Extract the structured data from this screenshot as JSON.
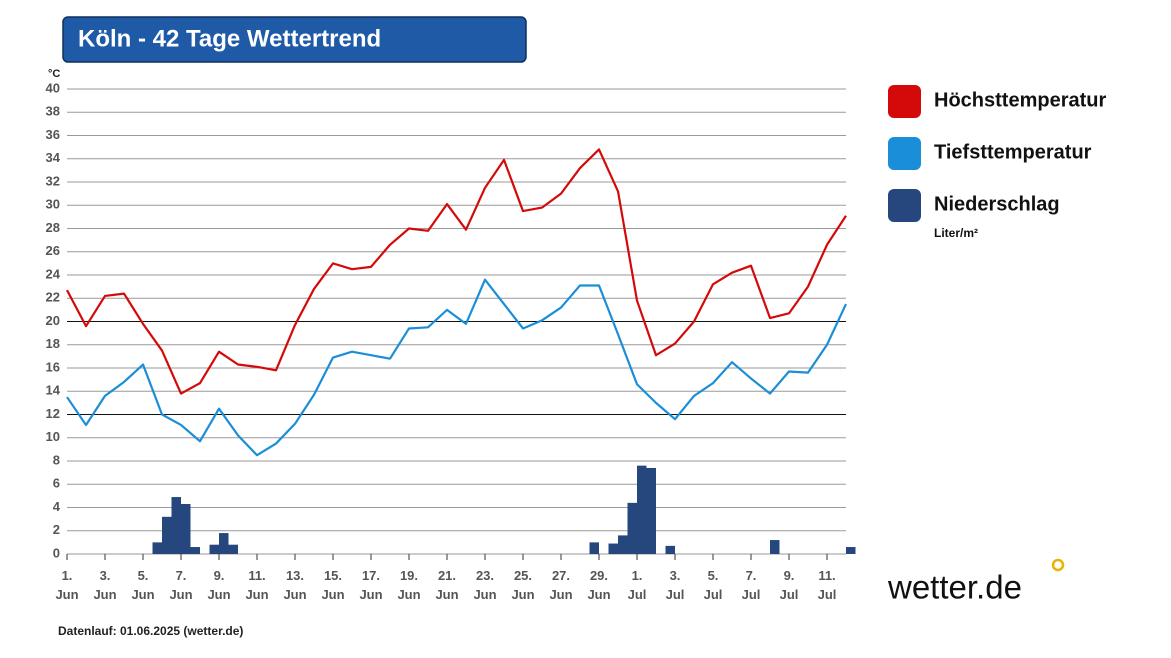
{
  "chart_data": {
    "type": "line",
    "title": "Köln - 42 Tage Wettertrend",
    "y_unit": "°C",
    "footnote": "Datenlauf: 01.06.2025 (wetter.de)",
    "brand": "wetter.de",
    "categories": [
      "1. Jun",
      null,
      "3. Jun",
      null,
      "5. Jun",
      null,
      "7. Jun",
      null,
      "9. Jun",
      null,
      "11. Jun",
      null,
      "13. Jun",
      null,
      "15. Jun",
      null,
      "17. Jun",
      null,
      "19. Jun",
      null,
      "21. Jun",
      null,
      "23. Jun",
      null,
      "25. Jun",
      null,
      "27. Jun",
      null,
      "29. Jun",
      null,
      "1. Jul",
      null,
      "3. Jul",
      null,
      "5. Jul",
      null,
      "7. Jul",
      null,
      "9. Jul",
      null,
      "11. Jul",
      null
    ],
    "ylim": [
      0,
      40
    ],
    "yticks": [
      0,
      2,
      4,
      6,
      8,
      10,
      12,
      14,
      16,
      18,
      20,
      22,
      24,
      26,
      28,
      30,
      32,
      34,
      36,
      38,
      40
    ],
    "grid": true,
    "reference_lines": [
      12,
      20
    ],
    "series": [
      {
        "name": "Höchsttemperatur",
        "type": "line",
        "color": "#d40a0a",
        "values": [
          22.7,
          19.6,
          22.2,
          22.4,
          19.8,
          17.5,
          13.8,
          14.7,
          17.4,
          16.3,
          16.1,
          15.8,
          19.7,
          22.8,
          25.0,
          24.5,
          24.7,
          26.6,
          28.0,
          27.8,
          30.1,
          27.9,
          31.5,
          33.9,
          29.5,
          29.8,
          31.0,
          33.2,
          34.8,
          31.2,
          21.8,
          17.1,
          18.1,
          20.0,
          23.2,
          24.2,
          24.8,
          20.3,
          20.7,
          23.0,
          26.6,
          29.1
        ]
      },
      {
        "name": "Tiefsttemperatur",
        "type": "line",
        "color": "#1a8ed8",
        "values": [
          13.5,
          11.1,
          13.6,
          14.8,
          16.3,
          12.0,
          11.1,
          9.7,
          12.5,
          10.2,
          8.5,
          9.5,
          11.2,
          13.7,
          16.9,
          17.4,
          17.1,
          16.8,
          19.4,
          19.5,
          21.0,
          19.8,
          23.6,
          21.5,
          19.4,
          20.1,
          21.2,
          23.1,
          23.1,
          18.9,
          14.6,
          13.0,
          11.6,
          13.6,
          14.7,
          16.5,
          15.1,
          13.8,
          15.7,
          15.6,
          18.0,
          21.5
        ]
      },
      {
        "name": "Niederschlag",
        "unit": "Liter/m²",
        "type": "bar",
        "color": "#26477e",
        "values": [
          [
            0,
            0
          ],
          [
            0,
            0
          ],
          [
            0,
            0
          ],
          [
            0,
            0
          ],
          [
            0,
            0
          ],
          [
            1.0,
            3.2
          ],
          [
            4.9,
            4.3
          ],
          [
            0.6,
            0
          ],
          [
            0.8,
            1.8
          ],
          [
            0.8,
            0
          ],
          [
            0,
            0
          ],
          [
            0,
            0
          ],
          [
            0,
            0
          ],
          [
            0,
            0
          ],
          [
            0,
            0
          ],
          [
            0,
            0
          ],
          [
            0,
            0
          ],
          [
            0,
            0
          ],
          [
            0,
            0
          ],
          [
            0,
            0
          ],
          [
            0,
            0
          ],
          [
            0,
            0
          ],
          [
            0,
            0
          ],
          [
            0,
            0
          ],
          [
            0,
            0
          ],
          [
            0,
            0
          ],
          [
            0,
            0
          ],
          [
            0,
            0
          ],
          [
            1.0,
            0
          ],
          [
            0.9,
            1.6
          ],
          [
            4.4,
            7.6
          ],
          [
            7.4,
            0
          ],
          [
            0.7,
            0
          ],
          [
            0,
            0
          ],
          [
            0,
            0
          ],
          [
            0,
            0
          ],
          [
            0,
            0
          ],
          [
            0,
            1.2
          ],
          [
            0,
            0
          ],
          [
            0,
            0
          ],
          [
            0,
            0
          ],
          [
            0,
            0.6
          ]
        ]
      }
    ]
  }
}
